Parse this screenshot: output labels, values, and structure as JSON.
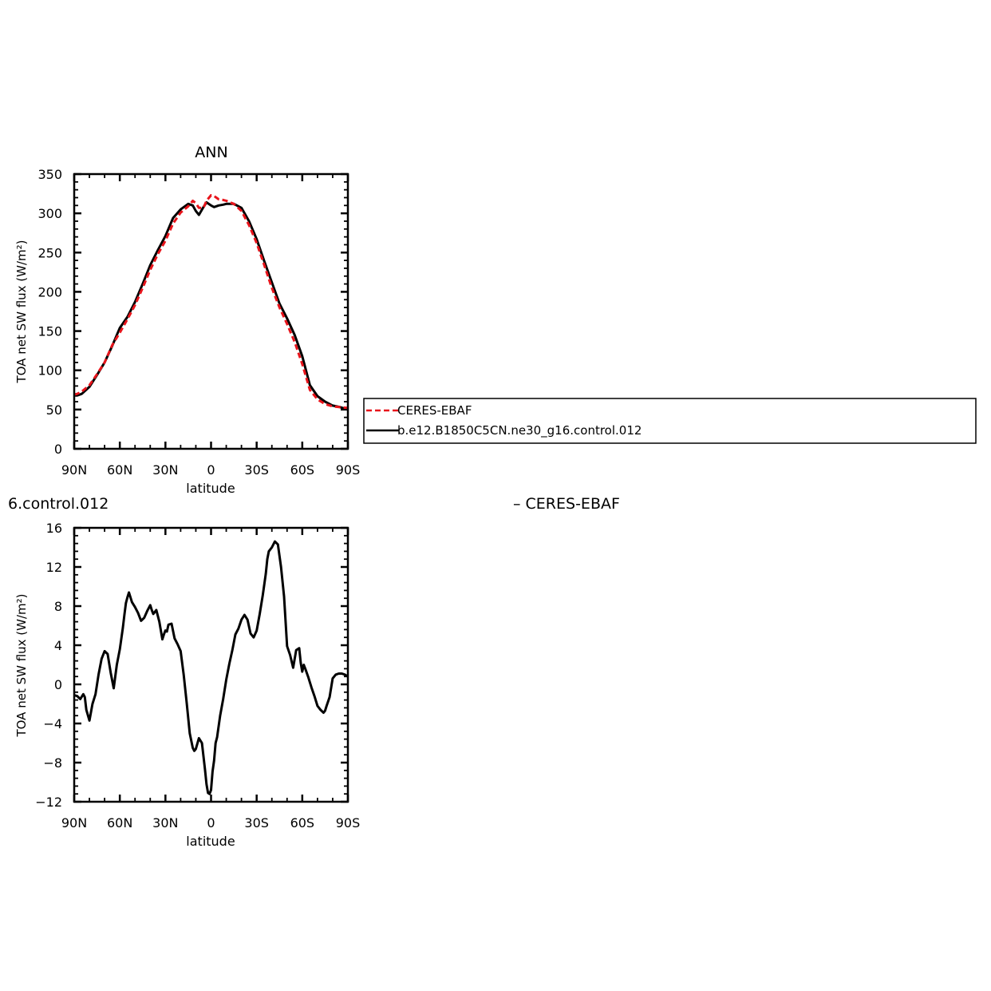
{
  "chart_data": [
    {
      "type": "line",
      "title": "ANN",
      "xlabel": "latitude",
      "ylabel": "TOA net SW flux (W/m²)",
      "xlim": [
        90,
        -90
      ],
      "ylim": [
        0,
        350
      ],
      "x_tick_labels": [
        "90N",
        "60N",
        "30N",
        "0",
        "30S",
        "60S",
        "90S"
      ],
      "y_tick_labels": [
        "0",
        "50",
        "100",
        "150",
        "200",
        "250",
        "300",
        "350"
      ],
      "legend_position": "right",
      "series": [
        {
          "name": "CERES-EBAF",
          "color": "#e8141b",
          "dash": "dashed",
          "x": [
            90,
            88,
            85,
            80,
            75,
            70,
            65,
            60,
            55,
            50,
            45,
            40,
            35,
            30,
            25,
            20,
            15,
            12,
            10,
            8,
            5,
            3,
            0,
            -2,
            -5,
            -8,
            -10,
            -15,
            -20,
            -25,
            -30,
            -35,
            -40,
            -45,
            -50,
            -55,
            -60,
            -65,
            -70,
            -75,
            -80,
            -85,
            -90
          ],
          "y": [
            69,
            70,
            73,
            81,
            95,
            110,
            132,
            148,
            165,
            183,
            205,
            228,
            248,
            265,
            287,
            301,
            309,
            316,
            313,
            307,
            307,
            316,
            323,
            322,
            318,
            317,
            316,
            312,
            303,
            285,
            262,
            234,
            205,
            180,
            159,
            136,
            108,
            75,
            63,
            57,
            54,
            53,
            52
          ]
        },
        {
          "name": "b.e12.B1850C5CN.ne30_g16.control.012",
          "color": "#000000",
          "dash": "solid",
          "x": [
            90,
            88,
            85,
            80,
            75,
            70,
            65,
            60,
            55,
            50,
            45,
            40,
            35,
            30,
            25,
            20,
            15,
            12,
            10,
            8,
            5,
            3,
            0,
            -2,
            -5,
            -8,
            -10,
            -15,
            -20,
            -25,
            -30,
            -35,
            -40,
            -45,
            -50,
            -55,
            -60,
            -65,
            -70,
            -75,
            -80,
            -85,
            -90
          ],
          "y": [
            68,
            68,
            70,
            79,
            94,
            110,
            131,
            154,
            168,
            187,
            210,
            234,
            253,
            271,
            294,
            305,
            312,
            310,
            303,
            298,
            308,
            314,
            310,
            308,
            310,
            311,
            312,
            312,
            307,
            290,
            267,
            239,
            212,
            185,
            166,
            145,
            118,
            81,
            67,
            60,
            55,
            53,
            50
          ]
        }
      ]
    },
    {
      "type": "line",
      "title": "6.control.012",
      "title_right": "– CERES-EBAF",
      "xlabel": "latitude",
      "ylabel": "TOA net SW flux (W/m²)",
      "xlim": [
        90,
        -90
      ],
      "ylim": [
        -12,
        16
      ],
      "x_tick_labels": [
        "90N",
        "60N",
        "30N",
        "0",
        "30S",
        "60S",
        "90S"
      ],
      "y_tick_labels": [
        "−12",
        "−8",
        "−4",
        "0",
        "4",
        "8",
        "12",
        "16"
      ],
      "series": [
        {
          "name": "",
          "color": "#000000",
          "dash": "solid",
          "x": [
            90,
            88,
            86,
            84,
            83,
            82,
            80,
            78,
            76,
            74,
            72,
            70,
            68,
            66,
            64,
            62,
            60,
            58,
            57,
            56,
            55,
            54,
            52,
            50,
            48,
            46,
            44,
            42,
            40,
            39,
            38,
            36,
            34,
            32,
            31,
            30,
            29,
            28,
            26,
            24,
            22,
            20,
            18,
            16,
            14,
            12,
            11,
            10,
            8,
            6,
            4,
            3,
            2,
            1,
            0,
            -1,
            -2,
            -3,
            -4,
            -6,
            -8,
            -10,
            -12,
            -14,
            -16,
            -18,
            -20,
            -22,
            -24,
            -26,
            -28,
            -30,
            -32,
            -34,
            -36,
            -37,
            -38,
            -40,
            -42,
            -44,
            -46,
            -48,
            -50,
            -52,
            -54,
            -56,
            -58,
            -59,
            -60,
            -61,
            -62,
            -64,
            -66,
            -68,
            -70,
            -72,
            -74,
            -75,
            -76,
            -78,
            -80,
            -82,
            -84,
            -86,
            -88,
            -89,
            -90
          ],
          "y": [
            -1.1,
            -1.2,
            -1.5,
            -1.0,
            -1.3,
            -2.6,
            -3.7,
            -2.0,
            -1.0,
            1.0,
            2.6,
            3.4,
            3.1,
            1.2,
            -0.4,
            2.0,
            3.6,
            5.8,
            7.1,
            8.3,
            8.9,
            9.4,
            8.4,
            7.9,
            7.3,
            6.5,
            6.8,
            7.5,
            8.1,
            7.6,
            7.2,
            7.6,
            6.4,
            4.6,
            5.1,
            5.5,
            5.4,
            6.1,
            6.2,
            4.7,
            4.1,
            3.4,
            1.0,
            -1.9,
            -5.0,
            -6.5,
            -6.8,
            -6.6,
            -5.5,
            -6.0,
            -8.7,
            -10.2,
            -11.1,
            -11.2,
            -10.8,
            -8.9,
            -7.8,
            -6.0,
            -5.4,
            -3.2,
            -1.5,
            0.5,
            2.1,
            3.5,
            5.1,
            5.7,
            6.6,
            7.1,
            6.6,
            5.2,
            4.8,
            5.5,
            7.2,
            9.1,
            11.3,
            12.8,
            13.6,
            14.0,
            14.6,
            14.3,
            12.0,
            9.0,
            3.9,
            3.0,
            1.7,
            3.5,
            3.7,
            2.2,
            1.3,
            2.0,
            1.6,
            0.7,
            -0.3,
            -1.2,
            -2.2,
            -2.6,
            -2.9,
            -2.7,
            -2.2,
            -1.3,
            0.6,
            1.0,
            1.1,
            1.1,
            1.0,
            0.9,
            0.8
          ]
        }
      ]
    }
  ]
}
